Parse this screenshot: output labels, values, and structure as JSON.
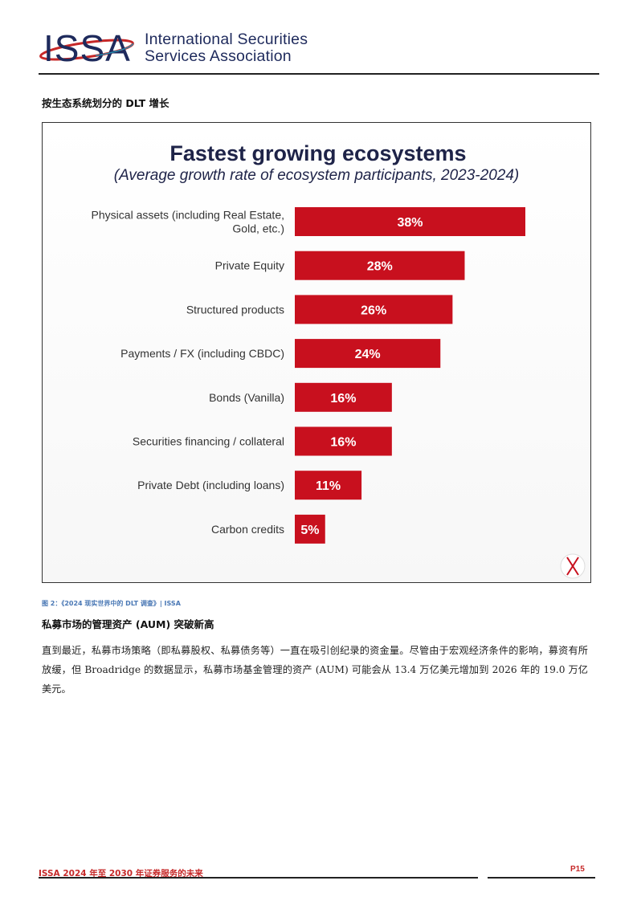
{
  "header": {
    "logo_text": "ISSA",
    "org_line1": "International Securities",
    "org_line2": "Services Association"
  },
  "section_title": "按生态系统划分的 DLT 增长",
  "figure": {
    "caption": "图 2：《2024 现实世界中的 DLT 调查》| ISSA"
  },
  "chart_data": {
    "type": "bar",
    "orientation": "horizontal",
    "title": "Fastest growing ecosystems",
    "subtitle": "(Average growth rate of ecosystem participants, 2023-2024)",
    "categories": [
      "Physical assets (including Real Estate, Gold, etc.)",
      "Private Equity",
      "Structured products",
      "Payments / FX (including CBDC)",
      "Bonds (Vanilla)",
      "Securities financing / collateral",
      "Private Debt (including loans)",
      "Carbon credits"
    ],
    "category_lines": [
      [
        "Physical assets (including Real Estate,",
        "Gold, etc.)"
      ],
      [
        "Private Equity"
      ],
      [
        "Structured products"
      ],
      [
        "Payments / FX (including CBDC)"
      ],
      [
        "Bonds (Vanilla)"
      ],
      [
        "Securities financing / collateral"
      ],
      [
        "Private Debt (including loans)"
      ],
      [
        "Carbon credits"
      ]
    ],
    "values": [
      38,
      28,
      26,
      24,
      16,
      16,
      11,
      5
    ],
    "labels": [
      "38%",
      "28%",
      "26%",
      "24%",
      "16%",
      "16%",
      "11%",
      "5%"
    ],
    "unit": "%",
    "bar_color": "#c8101e",
    "xlim": [
      0,
      40
    ]
  },
  "subheading": "私募市场的管理资产 (AUM) 突破新高",
  "paragraph": "直到最近，私募市场策略（即私募股权、私募债务等）一直在吸引创纪录的资金量。尽管由于宏观经济条件的影响，募资有所放缓，但 Broadridge 的数据显示，私募市场基金管理的资产 (AUM) 可能会从 13.4 万亿美元增加到 2026 年的 19.0 万亿美元。",
  "footer": {
    "left": "ISSA 2024 年至 2030 年证券服务的未来",
    "page": "P15"
  },
  "colors": {
    "brand_navy": "#1e2a5c",
    "brand_red": "#c62828",
    "caption_blue": "#4a78b5"
  }
}
